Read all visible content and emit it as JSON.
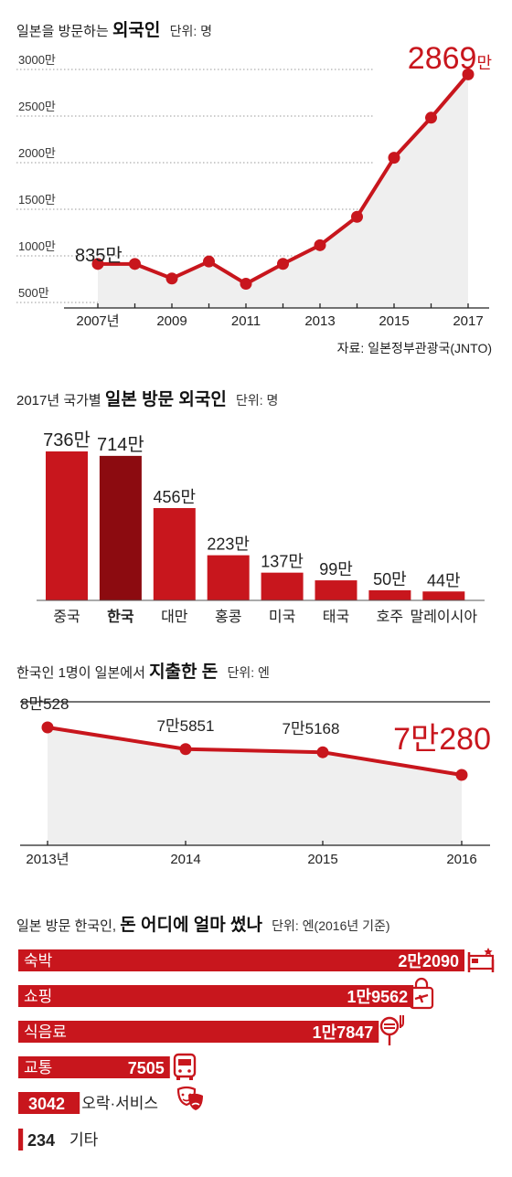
{
  "chart_data": [
    {
      "type": "line",
      "title_pre": "일본을 방문하는",
      "title_bold": "외국인",
      "unit": "단위: 명",
      "x": [
        2007,
        2008,
        2009,
        2010,
        2011,
        2012,
        2013,
        2014,
        2015,
        2016,
        2017
      ],
      "values": [
        835,
        835,
        679,
        861,
        622,
        836,
        1036,
        1341,
        1974,
        2404,
        2869
      ],
      "ylim": [
        500,
        3000
      ],
      "y_ticks": [
        500,
        1000,
        1500,
        2000,
        2500,
        3000
      ],
      "y_tick_labels": [
        "500만",
        "1000만",
        "1500만",
        "2000만",
        "2500만",
        "3000만"
      ],
      "x_tick_labels": [
        {
          "x": 2007,
          "label": "2007년"
        },
        {
          "x": 2009,
          "label": "2009"
        },
        {
          "x": 2011,
          "label": "2011"
        },
        {
          "x": 2013,
          "label": "2013"
        },
        {
          "x": 2015,
          "label": "2015"
        },
        {
          "x": 2017,
          "label": "2017"
        }
      ],
      "start_label": "835만",
      "end_label_num": "2869",
      "end_label_unit": "만",
      "source": "자료: 일본정부관광국(JNTO)",
      "line_color": "#c8161d"
    },
    {
      "type": "bar",
      "title_pre": "2017년 국가별",
      "title_bold": "일본 방문 외국인",
      "unit": "단위: 명",
      "categories": [
        "중국",
        "한국",
        "대만",
        "홍콩",
        "미국",
        "태국",
        "호주",
        "말레이시아"
      ],
      "values": [
        736,
        714,
        456,
        223,
        137,
        99,
        50,
        44
      ],
      "value_labels": [
        "736만",
        "714만",
        "456만",
        "223만",
        "137만",
        "99만",
        "50만",
        "44만"
      ],
      "highlight_index": 1,
      "bar_color": "#c8161d",
      "highlight_color": "#8c0b10"
    },
    {
      "type": "line",
      "title_pre": "한국인 1명이 일본에서",
      "title_bold": "지출한 돈",
      "unit": "단위: 엔",
      "x": [
        2013,
        2014,
        2015,
        2016
      ],
      "x_tick_labels": [
        "2013년",
        "2014",
        "2015",
        "2016"
      ],
      "values": [
        80528,
        75851,
        75168,
        70280
      ],
      "value_labels": [
        "8만528",
        "7만5851",
        "7만5168",
        "7만280"
      ],
      "line_color": "#c8161d"
    },
    {
      "type": "bar",
      "orientation": "horizontal",
      "title_pre": "일본 방문 한국인,",
      "title_bold": "돈 어디에 얼마 썼나",
      "unit": "단위: 엔(2016년 기준)",
      "categories": [
        "숙박",
        "쇼핑",
        "식음료",
        "교통",
        "오락·서비스",
        "기타"
      ],
      "values": [
        22090,
        19562,
        17847,
        7505,
        3042,
        234
      ],
      "value_labels": [
        "2만2090",
        "1만9562",
        "1만7847",
        "7505",
        "3042",
        "234"
      ],
      "icons": [
        "bed-icon",
        "shopping-bag-icon",
        "food-icon",
        "bus-icon",
        "theater-masks-icon",
        ""
      ],
      "bar_color": "#c8161d"
    }
  ]
}
